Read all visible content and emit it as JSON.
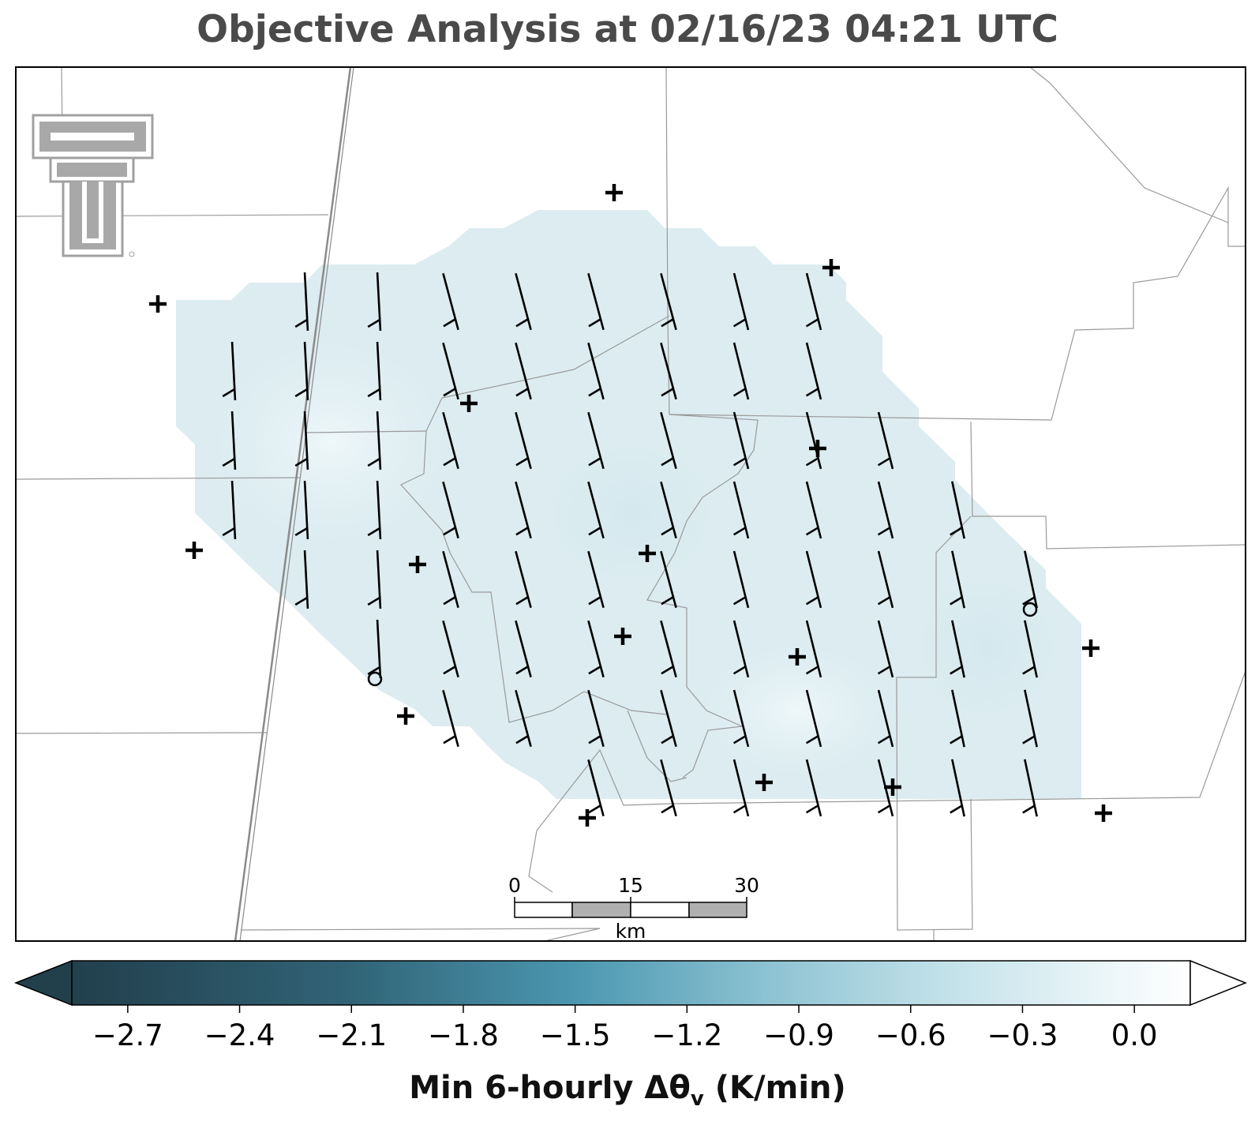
{
  "title": "Objective Analysis at 02/16/23 04:21 UTC",
  "logo": {
    "name": "texas-tech-double-t-logo",
    "color": "#a0a0a0"
  },
  "scale_bar": {
    "ticks": [
      "0",
      "15",
      "30"
    ],
    "unit": "km"
  },
  "colorbar": {
    "label_main": "Min 6-hourly Δθ",
    "label_sub": "v",
    "label_tail": " (K/min)",
    "ticks": [
      "−2.7",
      "−2.4",
      "−2.1",
      "−1.8",
      "−1.5",
      "−1.2",
      "−0.9",
      "−0.6",
      "−0.3",
      "0.0"
    ],
    "vmin": -2.85,
    "vmax": 0.15,
    "extend": "both",
    "colors": [
      "#223f4c",
      "#3a7588",
      "#4b97b0",
      "#8cc2d2",
      "#c2e1e9",
      "#ffffff"
    ]
  },
  "analysis_field": {
    "value_range": [
      -0.45,
      -0.15
    ],
    "fill": "#dcecf1"
  },
  "colors": {
    "barb": "#000000",
    "border": "#9a9a9a",
    "road": "#8a8a8a"
  }
}
